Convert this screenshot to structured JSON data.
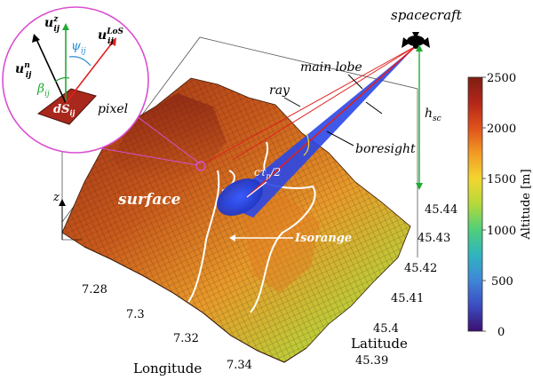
{
  "labels": {
    "spacecraft": "spacecraft",
    "main_lobe": "main lobe",
    "ray": "ray",
    "boresight": "boresight",
    "h_sc": "h",
    "h_sc_sub": "sc",
    "surface": "surface",
    "isorange": "Isorange",
    "ctp": "cτ",
    "ctp_sub": "p",
    "ctp_tail": "/2",
    "z_axis": "z",
    "pixel": "pixel"
  },
  "inset": {
    "u_z": "u",
    "u_z_sup": "z",
    "u_z_sub": "ij",
    "u_los": "u",
    "u_los_sup": "LoS",
    "u_los_sub": "ij",
    "u_n": "u",
    "u_n_sup": "n",
    "u_n_sub": "ij",
    "psi": "ψ",
    "psi_sub": "ij",
    "beta": "β",
    "beta_sub": "ij",
    "ds": "dS",
    "ds_sub": "ij"
  },
  "axes": {
    "longitude_title": "Longitude",
    "latitude_title": "Latitude",
    "longitude_ticks": [
      "7.28",
      "7.3",
      "7.32",
      "7.34"
    ],
    "latitude_ticks": [
      "45.44",
      "45.43",
      "45.42",
      "45.41",
      "45.4",
      "45.39"
    ]
  },
  "colorbar": {
    "title": "Altitude [m]",
    "ticks": [
      "2500",
      "2000",
      "1500",
      "1000",
      "500",
      "0"
    ],
    "min": 0,
    "max": 2500,
    "colormap": [
      "#3b0f70",
      "#3b4cc0",
      "#3f86d8",
      "#2fb5c0",
      "#4fcf7a",
      "#b4d93a",
      "#f3d630",
      "#f29b24",
      "#e0521a",
      "#b3261a",
      "#7f1d12"
    ]
  },
  "colors": {
    "beam": "#1f3fd8",
    "highlight": "#d94fd0",
    "accent_green": "#22aa33",
    "los_red": "#e02020",
    "pixel_red": "#a8281c"
  }
}
